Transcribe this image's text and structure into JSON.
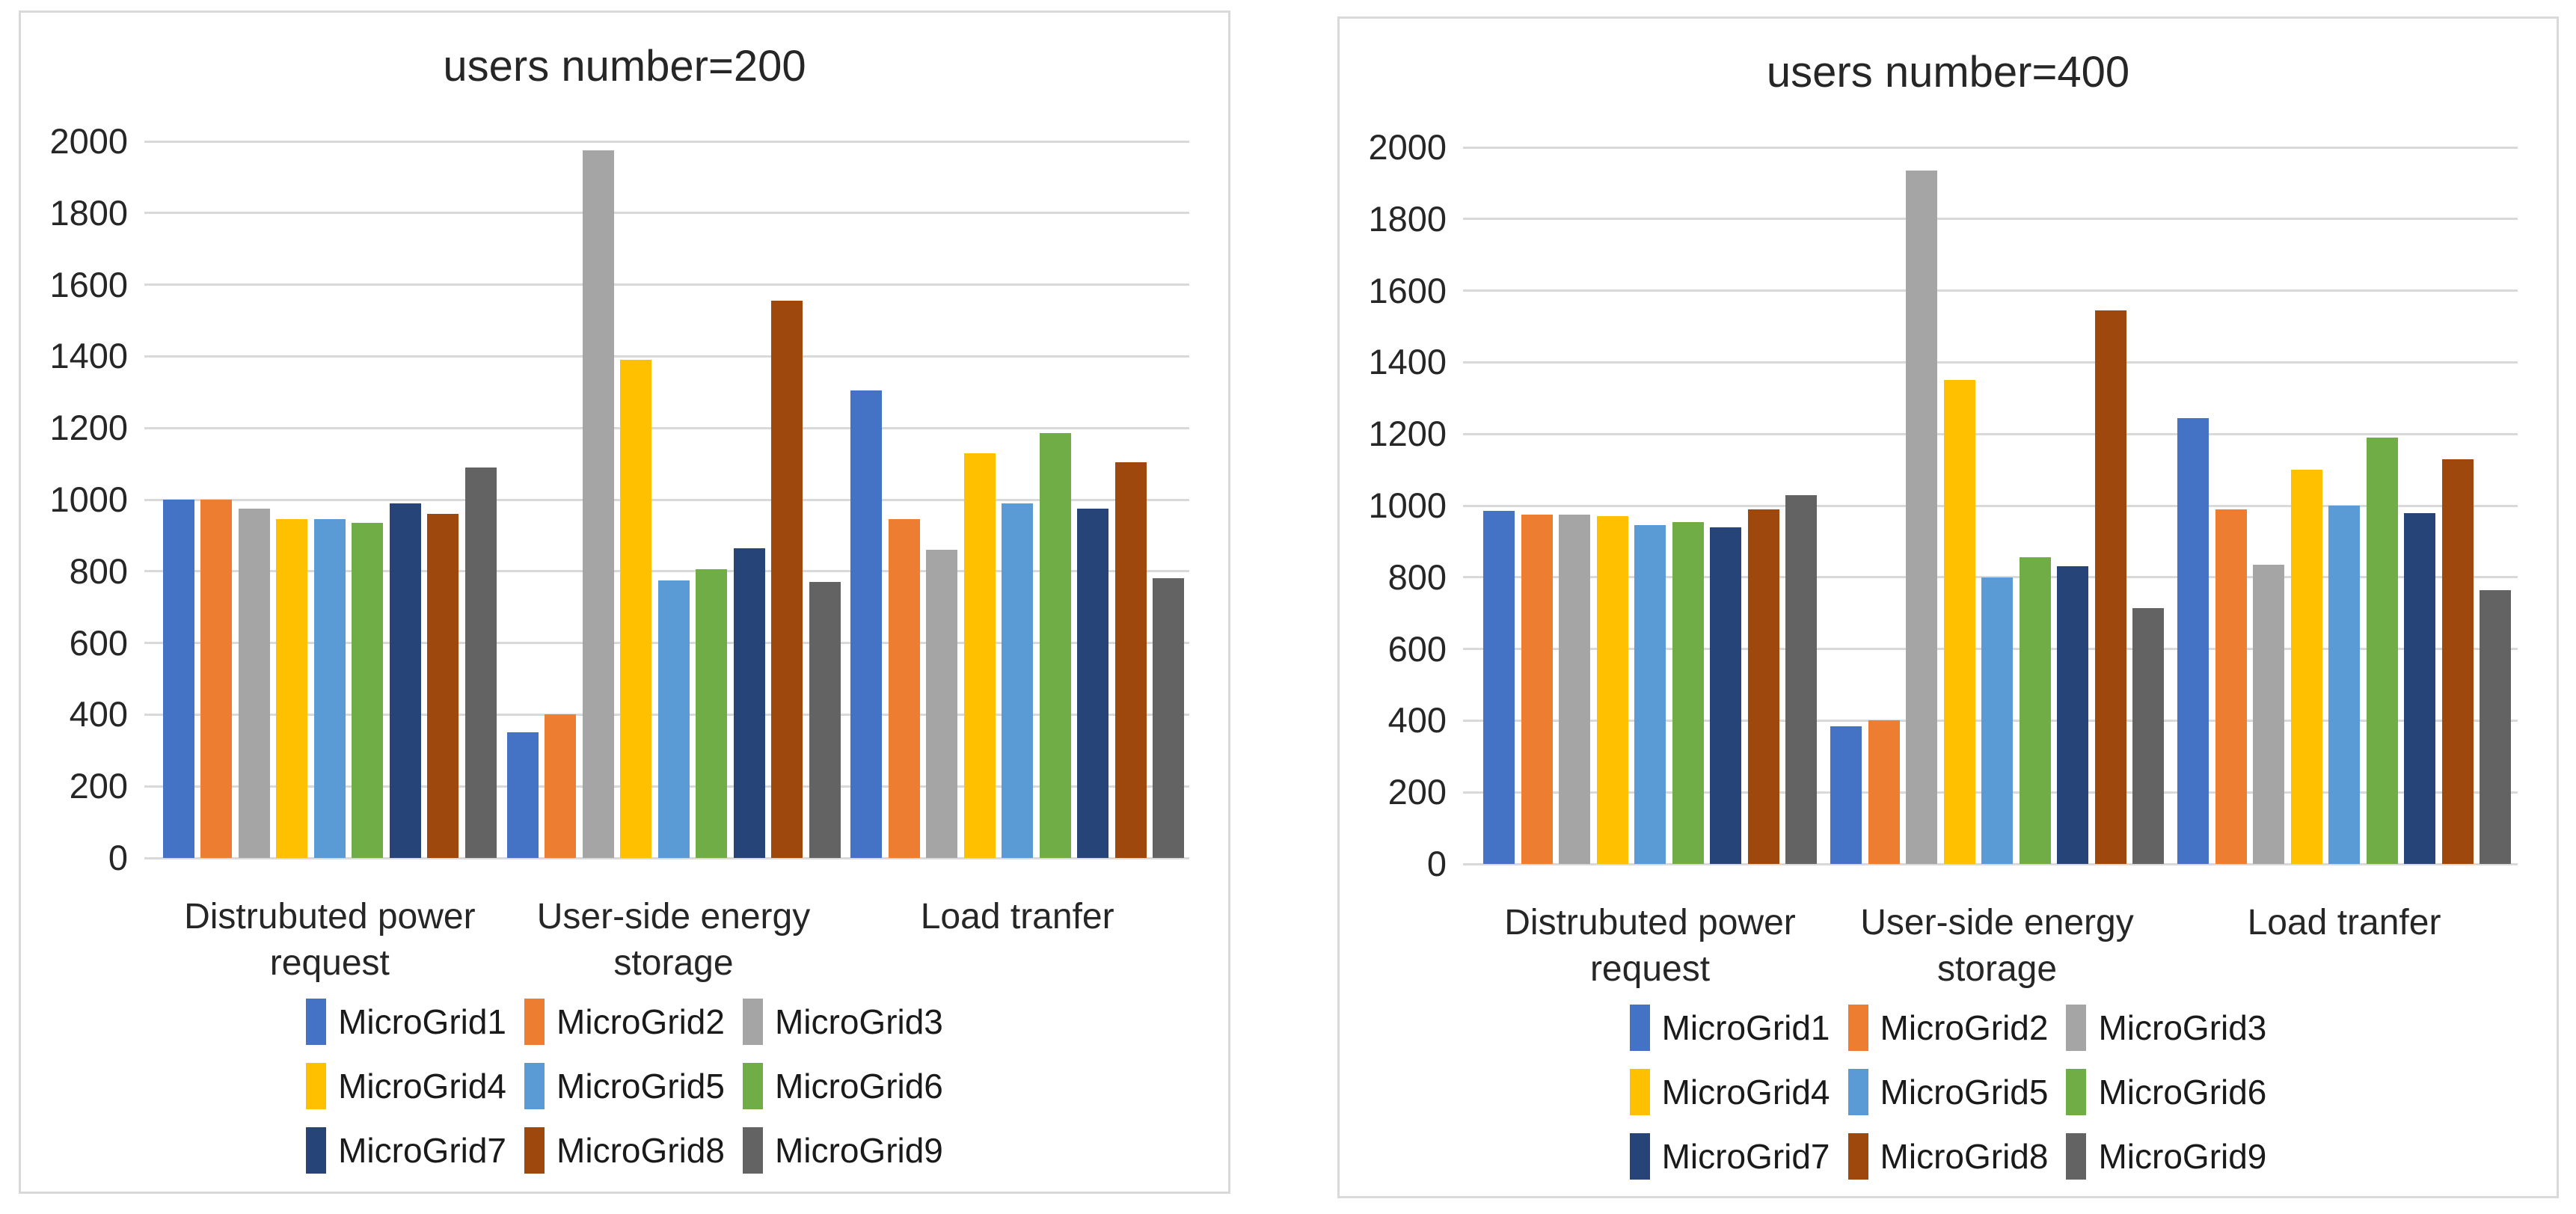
{
  "figure": {
    "background": "#ffffff",
    "panel_border_color": "#d9d9d9",
    "gridline_color": "#d9d9d9",
    "text_color": "#262626"
  },
  "chart_data": [
    {
      "type": "bar",
      "title": "users number=200",
      "categories": [
        "Distrubuted power request",
        "User-side energy storage",
        "Load tranfer"
      ],
      "category_label_lines": [
        [
          "Distrubuted power",
          "request"
        ],
        [
          "User-side energy",
          "storage"
        ],
        [
          "Load tranfer"
        ]
      ],
      "xlabel": "",
      "ylabel": "",
      "ylim": [
        0,
        2000
      ],
      "ytick_step": 200,
      "grid": true,
      "legend_position": "bottom",
      "legend_rows": [
        [
          "MicroGrid1",
          "MicroGrid2",
          "MicroGrid3"
        ],
        [
          "MicroGrid4",
          "MicroGrid5",
          "MicroGrid6"
        ],
        [
          "MicroGrid7",
          "MicroGrid8",
          "MicroGrid9"
        ]
      ],
      "series": [
        {
          "name": "MicroGrid1",
          "color": "#4472C4",
          "values": [
            1000,
            350,
            1305
          ]
        },
        {
          "name": "MicroGrid2",
          "color": "#ED7D31",
          "values": [
            1000,
            400,
            945
          ]
        },
        {
          "name": "MicroGrid3",
          "color": "#A5A5A5",
          "values": [
            975,
            1975,
            860
          ]
        },
        {
          "name": "MicroGrid4",
          "color": "#FFC000",
          "values": [
            945,
            1390,
            1130
          ]
        },
        {
          "name": "MicroGrid5",
          "color": "#5B9BD5",
          "values": [
            945,
            775,
            990
          ]
        },
        {
          "name": "MicroGrid6",
          "color": "#70AD47",
          "values": [
            935,
            805,
            1185
          ]
        },
        {
          "name": "MicroGrid7",
          "color": "#264478",
          "values": [
            990,
            865,
            975
          ]
        },
        {
          "name": "MicroGrid8",
          "color": "#9E480E",
          "values": [
            960,
            1555,
            1105
          ]
        },
        {
          "name": "MicroGrid9",
          "color": "#636363",
          "values": [
            1090,
            770,
            780
          ]
        }
      ]
    },
    {
      "type": "bar",
      "title": "users number=400",
      "categories": [
        "Distrubuted power request",
        "User-side energy storage",
        "Load tranfer"
      ],
      "category_label_lines": [
        [
          "Distrubuted power",
          "request"
        ],
        [
          "User-side energy",
          "storage"
        ],
        [
          "Load tranfer"
        ]
      ],
      "xlabel": "",
      "ylabel": "",
      "ylim": [
        0,
        2000
      ],
      "ytick_step": 200,
      "grid": true,
      "legend_position": "bottom",
      "legend_rows": [
        [
          "MicroGrid1",
          "MicroGrid2",
          "MicroGrid3"
        ],
        [
          "MicroGrid4",
          "MicroGrid5",
          "MicroGrid6"
        ],
        [
          "MicroGrid7",
          "MicroGrid8",
          "MicroGrid9"
        ]
      ],
      "series": [
        {
          "name": "MicroGrid1",
          "color": "#4472C4",
          "values": [
            985,
            385,
            1245
          ]
        },
        {
          "name": "MicroGrid2",
          "color": "#ED7D31",
          "values": [
            975,
            400,
            990
          ]
        },
        {
          "name": "MicroGrid3",
          "color": "#A5A5A5",
          "values": [
            975,
            1935,
            835
          ]
        },
        {
          "name": "MicroGrid4",
          "color": "#FFC000",
          "values": [
            970,
            1350,
            1100
          ]
        },
        {
          "name": "MicroGrid5",
          "color": "#5B9BD5",
          "values": [
            945,
            800,
            1000
          ]
        },
        {
          "name": "MicroGrid6",
          "color": "#70AD47",
          "values": [
            955,
            855,
            1190
          ]
        },
        {
          "name": "MicroGrid7",
          "color": "#264478",
          "values": [
            940,
            830,
            980
          ]
        },
        {
          "name": "MicroGrid8",
          "color": "#9E480E",
          "values": [
            990,
            1545,
            1130
          ]
        },
        {
          "name": "MicroGrid9",
          "color": "#636363",
          "values": [
            1030,
            715,
            765
          ]
        }
      ]
    }
  ]
}
